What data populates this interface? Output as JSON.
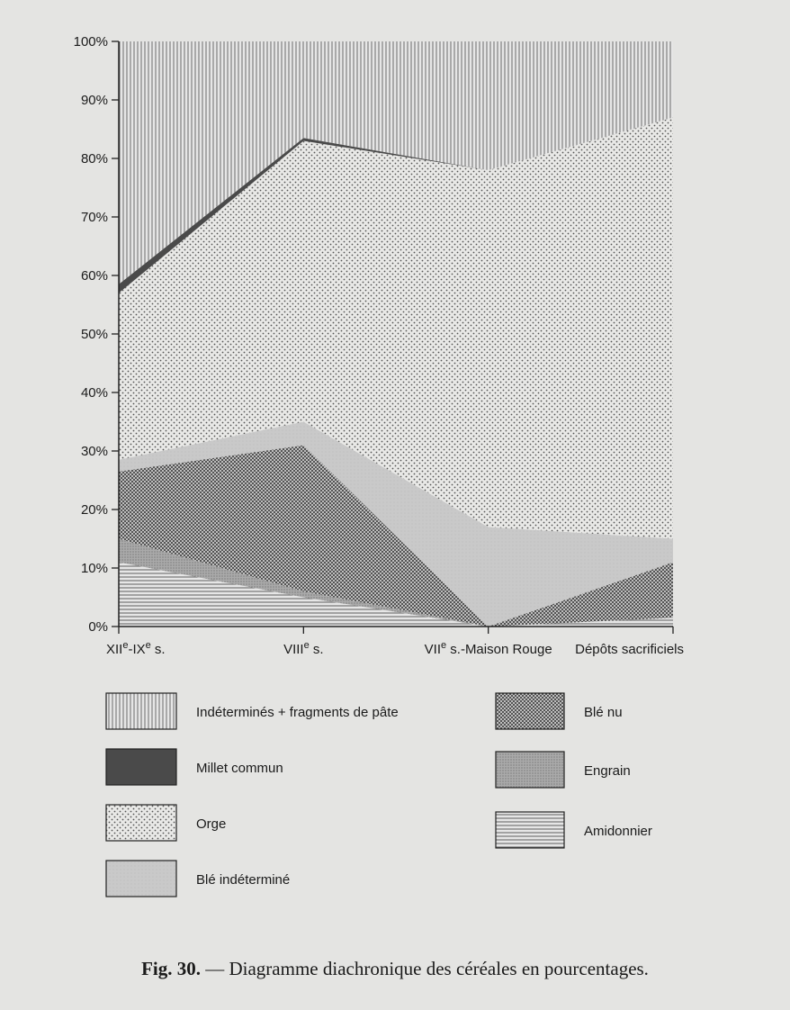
{
  "chart_data": {
    "type": "area",
    "stacked": true,
    "title": "",
    "xlabel": "",
    "ylabel": "",
    "ylim": [
      0,
      100
    ],
    "yticks": [
      "0%",
      "10%",
      "20%",
      "30%",
      "40%",
      "50%",
      "60%",
      "70%",
      "80%",
      "90%",
      "100%"
    ],
    "categories": [
      "XIIe-IXe s.",
      "VIIIe s.",
      "VIIe s.-Maison Rouge",
      "Dépôts sacrificiels"
    ],
    "category_labels": [
      {
        "base": "XII",
        "sup1": "e",
        "mid": "-IX",
        "sup2": "e",
        "tail": " s."
      },
      {
        "base": "VIII",
        "sup1": "e",
        "mid": " s.",
        "sup2": "",
        "tail": ""
      },
      {
        "base": "VII",
        "sup1": "e",
        "mid": " s.-Maison Rouge",
        "sup2": "",
        "tail": ""
      },
      {
        "base": "Dépôts sacrificiels",
        "sup1": "",
        "mid": "",
        "sup2": "",
        "tail": ""
      }
    ],
    "series": [
      {
        "name": "Amidonnier",
        "values": [
          11,
          5,
          0,
          1.5
        ],
        "pattern": "hlines"
      },
      {
        "name": "Engrain",
        "values": [
          4,
          1,
          0,
          0
        ],
        "pattern": "fine-dots"
      },
      {
        "name": "Blé nu",
        "values": [
          11.5,
          25,
          0,
          9.5
        ],
        "pattern": "cross-dots"
      },
      {
        "name": "Blé indéterminé",
        "values": [
          2,
          4,
          17,
          4
        ],
        "pattern": "light-gray"
      },
      {
        "name": "Orge",
        "values": [
          28.5,
          48,
          61,
          72
        ],
        "pattern": "sparse-dots"
      },
      {
        "name": "Millet commun",
        "values": [
          1.5,
          0.5,
          0,
          0
        ],
        "pattern": "dark"
      },
      {
        "name": "Indéterminés + fragments de pâte",
        "values": [
          41.5,
          16.5,
          22,
          13
        ],
        "pattern": "vlines"
      }
    ],
    "legend": {
      "placement": "bottom",
      "columns": [
        [
          "Indéterminés + fragments de pâte",
          "Millet commun",
          "Orge",
          "Blé indéterminé"
        ],
        [
          "Blé nu",
          "Engrain",
          "Amidonnier"
        ]
      ]
    }
  },
  "caption": {
    "label": "Fig. 30.",
    "text": " — Diagramme diachronique des céréales en pourcentages."
  }
}
